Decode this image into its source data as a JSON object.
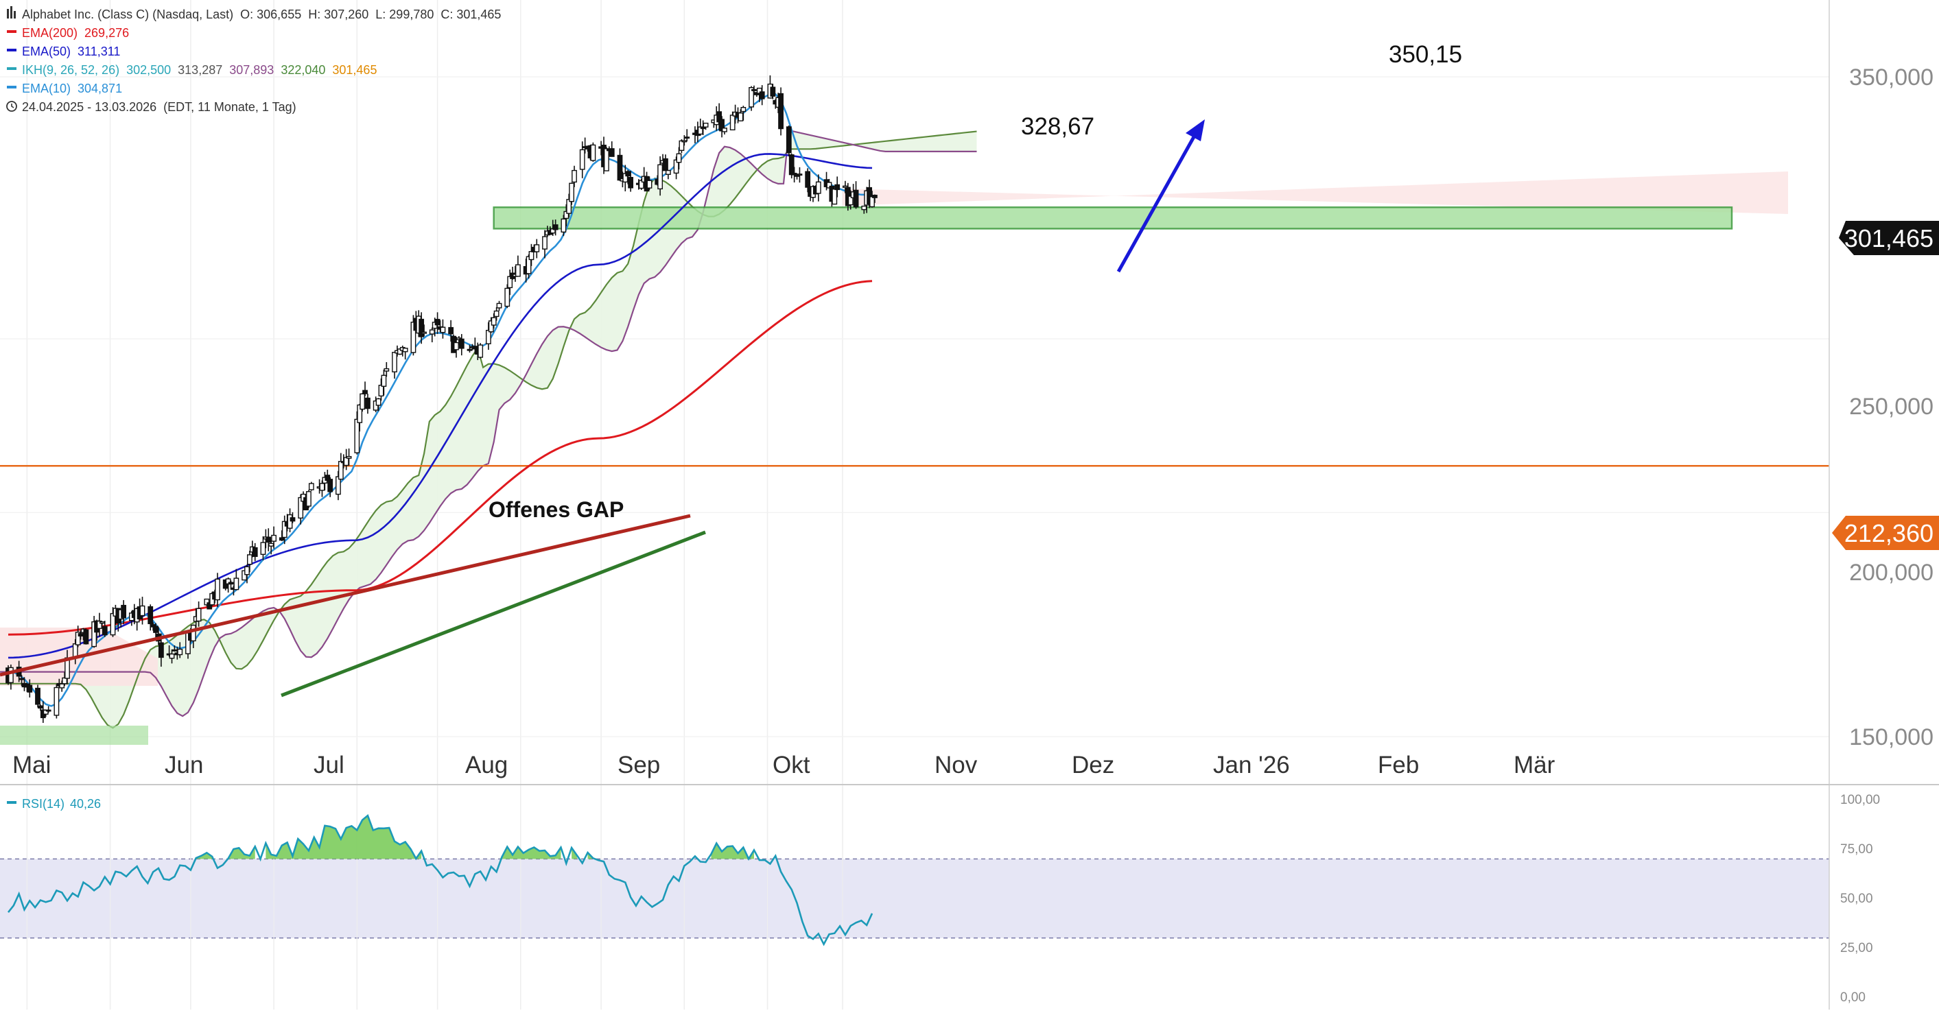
{
  "header": {
    "title": "Alphabet Inc. (Class C) (Nasdaq, Last)",
    "ohlc": "O: 306,655  H: 307,260  L: 299,780  C: 301,465",
    "date_range": "24.04.2025 - 13.03.2026",
    "date_info": "(EDT, 11 Monate, 1 Tag)"
  },
  "legend": [
    {
      "label": "EMA(200)",
      "value": "269,276",
      "color": "#e0191e",
      "value_colors": [
        "#e0191e"
      ]
    },
    {
      "label": "EMA(50)",
      "value": "311,311",
      "color": "#1818c8",
      "value_colors": [
        "#1818c8"
      ]
    },
    {
      "label": "IKH(9, 26, 52, 26)",
      "values": [
        "302,500",
        "313,287",
        "307,893",
        "322,040",
        "301,465"
      ],
      "color": "#2aa6b8",
      "value_colors": [
        "#2aa6b8",
        "#555555",
        "#8a4a8a",
        "#4a8a3a",
        "#e08a00"
      ]
    },
    {
      "label": "EMA(10)",
      "value": "304,871",
      "color": "#2a90d8",
      "value_colors": [
        "#2a90d8"
      ]
    }
  ],
  "rsi_legend": {
    "label": "RSI(14)",
    "value": "40,26",
    "color": "#1c9ab8"
  },
  "badges": {
    "last_price": "301,465",
    "level": "212,360"
  },
  "annotations": {
    "peak1": "328,67",
    "peak2": "350,15",
    "gap": "Offenes GAP"
  },
  "price_axis_labels": [
    "350,000",
    "250,000",
    "200,000",
    "150,000"
  ],
  "rsi_axis_labels": [
    "100,00",
    "75,00",
    "50,00",
    "25,00",
    "0,00"
  ],
  "month_labels": [
    "Mai",
    "Jun",
    "Jul",
    "Aug",
    "Sep",
    "Okt",
    "Nov",
    "Dez",
    "Jan '26",
    "Feb",
    "Mär"
  ],
  "colors": {
    "ema200": "#e0191e",
    "ema50": "#1818c8",
    "ema10": "#2a90d8",
    "kumo_a": "#5c8a3c",
    "kumo_b": "#8a4a8a",
    "cloud_bull": "#e8f5e3",
    "cloud_bear": "#fbe3e3",
    "level_line": "#e86a1a",
    "rsi_line": "#1c9ab8",
    "rsi_band": "#e6e6f5",
    "rsi_overbought_fill": "#7ccc5c",
    "support_zone": "#a8e0a0"
  },
  "chart_data": [
    {
      "type": "candlestick",
      "title": "Alphabet Inc. (Class C) (Nasdaq, Last)",
      "x_range": [
        "2025-04-24",
        "2026-03-13"
      ],
      "ylim": [
        145,
        365
      ],
      "y_scale": "log",
      "monthly_path": [
        {
          "date": "2025-04-24",
          "close": 163
        },
        {
          "date": "2025-05-07",
          "close": 154
        },
        {
          "date": "2025-05-23",
          "close": 171
        },
        {
          "date": "2025-06-10",
          "close": 177
        },
        {
          "date": "2025-06-23",
          "close": 166
        },
        {
          "date": "2025-07-14",
          "close": 182
        },
        {
          "date": "2025-07-31",
          "close": 193
        },
        {
          "date": "2025-08-18",
          "close": 206
        },
        {
          "date": "2025-08-29",
          "close": 213
        },
        {
          "date": "2025-09-03",
          "close": 230
        },
        {
          "date": "2025-09-25",
          "close": 254
        },
        {
          "date": "2025-10-15",
          "close": 246
        },
        {
          "date": "2025-10-28",
          "close": 270
        },
        {
          "date": "2025-11-13",
          "close": 285
        },
        {
          "date": "2025-11-25",
          "close": 320
        },
        {
          "date": "2025-12-16",
          "close": 305
        },
        {
          "date": "2026-01-09",
          "close": 328
        },
        {
          "date": "2026-02-02",
          "close": 345
        },
        {
          "date": "2026-02-12",
          "close": 305
        },
        {
          "date": "2026-03-06",
          "close": 300
        },
        {
          "date": "2026-03-13",
          "close": 301.465
        }
      ],
      "ema200_path": [
        {
          "date": "2025-04-24",
          "value": 171
        },
        {
          "date": "2025-08-31",
          "value": 181
        },
        {
          "date": "2025-11-30",
          "value": 220
        },
        {
          "date": "2026-03-13",
          "value": 269.276
        }
      ],
      "ema50_path": [
        {
          "date": "2025-04-24",
          "value": 166
        },
        {
          "date": "2025-08-31",
          "value": 193
        },
        {
          "date": "2025-11-30",
          "value": 275
        },
        {
          "date": "2026-02-01",
          "value": 317
        },
        {
          "date": "2026-03-13",
          "value": 311.311
        }
      ],
      "horizontal_level": 212.36,
      "support_zone": [
        288,
        296
      ],
      "series": [
        {
          "name": "EMA(200)",
          "last": 269.276
        },
        {
          "name": "EMA(50)",
          "last": 311.311
        },
        {
          "name": "EMA(10)",
          "last": 304.871
        },
        {
          "name": "IKH(9, 26, 52, 26)",
          "last": [
            302.5,
            313.287,
            307.893,
            322.04,
            301.465
          ]
        }
      ],
      "annotations": [
        {
          "text": "328,67",
          "value": 328.67
        },
        {
          "text": "350,15",
          "value": 350.15
        },
        {
          "text": "Offenes GAP",
          "date": "2025-08-31"
        }
      ]
    },
    {
      "type": "line",
      "title": "RSI(14)",
      "ylim": [
        0,
        100
      ],
      "reference_lines": [
        30,
        70
      ],
      "last": 40.26,
      "monthly_path": [
        {
          "date": "2025-05-01",
          "value": 48
        },
        {
          "date": "2025-06-10",
          "value": 62
        },
        {
          "date": "2025-07-28",
          "value": 73
        },
        {
          "date": "2025-09-05",
          "value": 87
        },
        {
          "date": "2025-10-15",
          "value": 58
        },
        {
          "date": "2025-10-28",
          "value": 72
        },
        {
          "date": "2025-11-25",
          "value": 72
        },
        {
          "date": "2025-12-17",
          "value": 50
        },
        {
          "date": "2026-01-16",
          "value": 74
        },
        {
          "date": "2026-02-02",
          "value": 69
        },
        {
          "date": "2026-02-20",
          "value": 30
        },
        {
          "date": "2026-03-13",
          "value": 40.26
        }
      ]
    }
  ]
}
